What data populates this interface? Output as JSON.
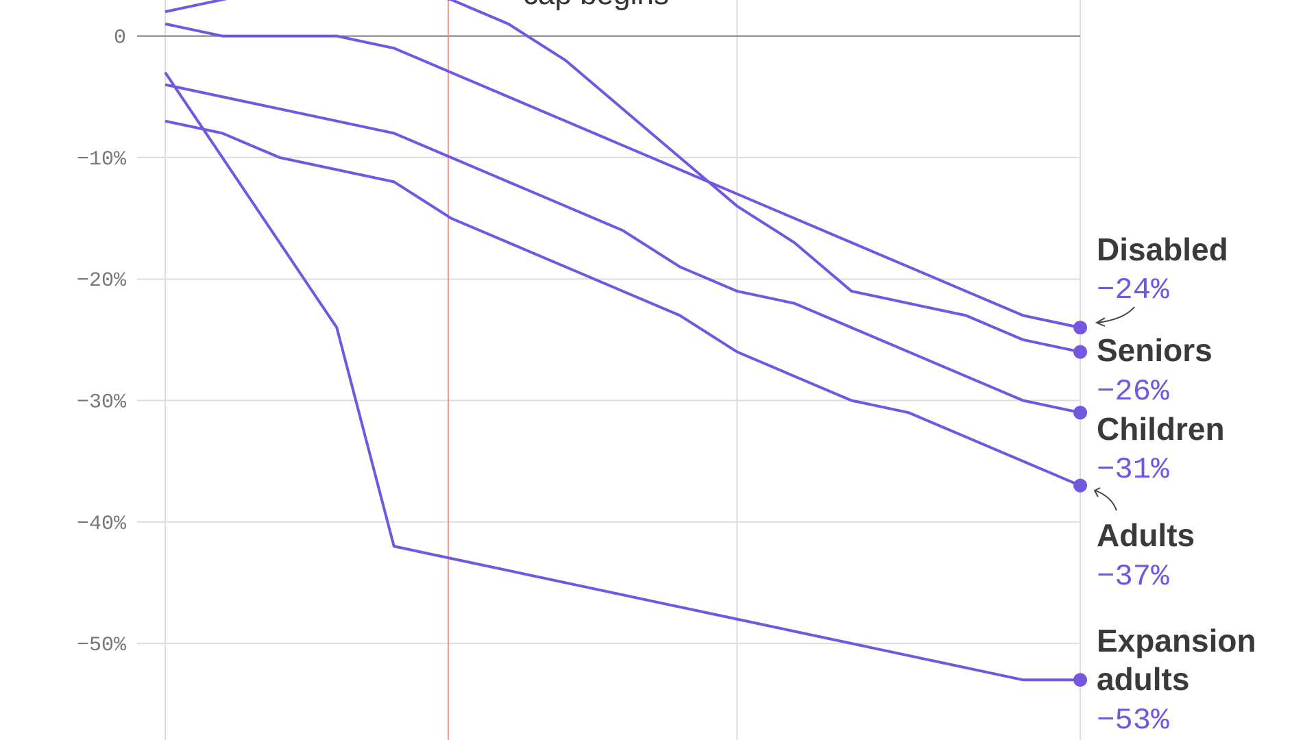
{
  "chart_data": {
    "type": "line",
    "title": "",
    "xlabel": "",
    "ylabel": "",
    "ylim": [
      -53,
      3
    ],
    "y_ticks": [
      {
        "value": 0,
        "label": "0"
      },
      {
        "value": -10,
        "label": "−10%"
      },
      {
        "value": -20,
        "label": "−20%"
      },
      {
        "value": -30,
        "label": "−30%"
      },
      {
        "value": -40,
        "label": "−40%"
      },
      {
        "value": -50,
        "label": "−50%"
      }
    ],
    "grid": true,
    "annotation": {
      "text": "cap begins",
      "color": "#f08070"
    },
    "line_color": "#7357e0",
    "series": [
      {
        "name": "Disabled",
        "end_label": "−24%",
        "values": [
          1,
          0,
          0,
          0,
          -1,
          -3,
          -5,
          -7,
          -9,
          -11,
          -13,
          -15,
          -17,
          -19,
          -21,
          -23,
          -24
        ]
      },
      {
        "name": "Seniors",
        "end_label": "−26%",
        "values": [
          2,
          3,
          4,
          5,
          4,
          3,
          1,
          -2,
          -6,
          -10,
          -14,
          -17,
          -21,
          -22,
          -23,
          -25,
          -26
        ]
      },
      {
        "name": "Children",
        "end_label": "−31%",
        "values": [
          -4,
          -5,
          -6,
          -7,
          -8,
          -10,
          -12,
          -14,
          -16,
          -19,
          -21,
          -22,
          -24,
          -26,
          -28,
          -30,
          -31
        ]
      },
      {
        "name": "Adults",
        "end_label": "−37%",
        "values": [
          -7,
          -8,
          -10,
          -11,
          -12,
          -15,
          -17,
          -19,
          -21,
          -23,
          -26,
          -28,
          -30,
          -31,
          -33,
          -35,
          -37
        ]
      },
      {
        "name": "Expansion adults",
        "name_lines": [
          "Expansion",
          "adults"
        ],
        "end_label": "−53%",
        "values": [
          -3,
          -10,
          -17,
          -24,
          -42,
          -43,
          -44,
          -45,
          -46,
          -47,
          -48,
          -49,
          -50,
          -51,
          -52,
          -53,
          -53
        ]
      }
    ]
  }
}
